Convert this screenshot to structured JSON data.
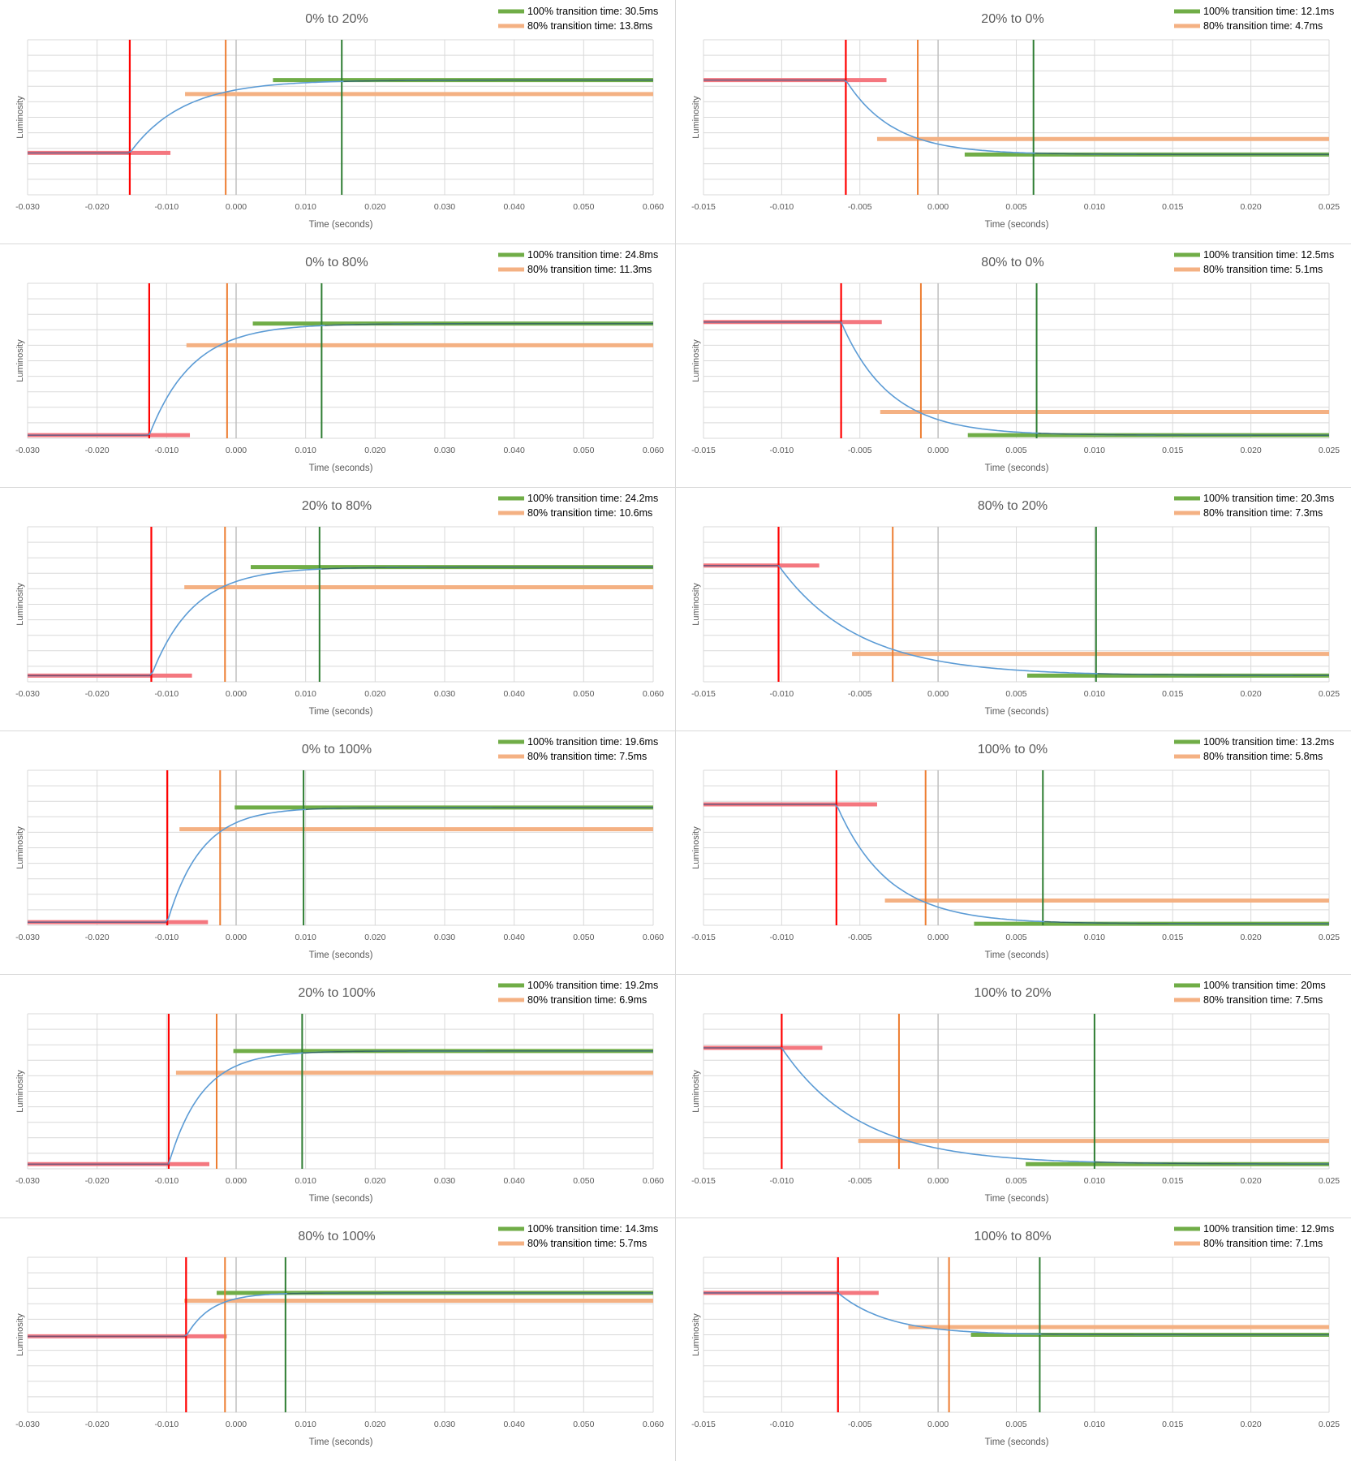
{
  "chart_data": [
    {
      "type": "line",
      "title": "0% to 20%",
      "xlabel": "Time (seconds)",
      "ylabel": "Luminosity",
      "xlim": [
        -0.03,
        0.06
      ],
      "xticks": [
        "-0.030",
        "-0.020",
        "-0.010",
        "0.000",
        "0.010",
        "0.020",
        "0.030",
        "0.040",
        "0.050",
        "0.060"
      ],
      "direction": "rise",
      "levels": {
        "start": 0.27,
        "end": 0.74,
        "threshold80": 0.65
      },
      "markers": {
        "start_time": -0.0153,
        "t80": -0.0015,
        "t100": 0.0152
      },
      "legend": [
        {
          "label": "100% transition time: 30.5ms",
          "color": "#70ad47"
        },
        {
          "label": "80% transition time: 13.8ms",
          "color": "#f4b183"
        }
      ]
    },
    {
      "type": "line",
      "title": "20% to 0%",
      "xlabel": "Time (seconds)",
      "ylabel": "Luminosity",
      "xlim": [
        -0.015,
        0.025
      ],
      "xticks": [
        "-0.015",
        "-0.010",
        "-0.005",
        "0.000",
        "0.005",
        "0.010",
        "0.015",
        "0.020",
        "0.025"
      ],
      "direction": "fall",
      "levels": {
        "start": 0.74,
        "end": 0.26,
        "threshold80": 0.36
      },
      "markers": {
        "start_time": -0.0059,
        "t80": -0.0013,
        "t100": 0.0061
      },
      "legend": [
        {
          "label": "100% transition time: 12.1ms",
          "color": "#70ad47"
        },
        {
          "label": "80% transition time: 4.7ms",
          "color": "#f4b183"
        }
      ]
    },
    {
      "type": "line",
      "title": "0% to 80%",
      "xlabel": "Time (seconds)",
      "ylabel": "Luminosity",
      "xlim": [
        -0.03,
        0.06
      ],
      "xticks": [
        "-0.030",
        "-0.020",
        "-0.010",
        "0.000",
        "0.010",
        "0.020",
        "0.030",
        "0.040",
        "0.050",
        "0.060"
      ],
      "direction": "rise",
      "levels": {
        "start": 0.02,
        "end": 0.74,
        "threshold80": 0.6
      },
      "markers": {
        "start_time": -0.0125,
        "t80": -0.0013,
        "t100": 0.0123
      },
      "legend": [
        {
          "label": "100% transition time: 24.8ms",
          "color": "#70ad47"
        },
        {
          "label": "80% transition time: 11.3ms",
          "color": "#f4b183"
        }
      ]
    },
    {
      "type": "line",
      "title": "80% to 0%",
      "xlabel": "Time (seconds)",
      "ylabel": "Luminosity",
      "xlim": [
        -0.015,
        0.025
      ],
      "xticks": [
        "-0.015",
        "-0.010",
        "-0.005",
        "0.000",
        "0.005",
        "0.010",
        "0.015",
        "0.020",
        "0.025"
      ],
      "direction": "fall",
      "levels": {
        "start": 0.75,
        "end": 0.02,
        "threshold80": 0.17
      },
      "markers": {
        "start_time": -0.0062,
        "t80": -0.0011,
        "t100": 0.0063
      },
      "legend": [
        {
          "label": "100% transition time: 12.5ms",
          "color": "#70ad47"
        },
        {
          "label": "80% transition time: 5.1ms",
          "color": "#f4b183"
        }
      ]
    },
    {
      "type": "line",
      "title": "20% to 80%",
      "xlabel": "Time (seconds)",
      "ylabel": "Luminosity",
      "xlim": [
        -0.03,
        0.06
      ],
      "xticks": [
        "-0.030",
        "-0.020",
        "-0.010",
        "0.000",
        "0.010",
        "0.020",
        "0.030",
        "0.040",
        "0.050",
        "0.060"
      ],
      "direction": "rise",
      "levels": {
        "start": 0.04,
        "end": 0.74,
        "threshold80": 0.61
      },
      "markers": {
        "start_time": -0.0122,
        "t80": -0.0016,
        "t100": 0.012
      },
      "legend": [
        {
          "label": "100% transition time: 24.2ms",
          "color": "#70ad47"
        },
        {
          "label": "80% transition time: 10.6ms",
          "color": "#f4b183"
        }
      ]
    },
    {
      "type": "line",
      "title": "80% to 20%",
      "xlabel": "Time (seconds)",
      "ylabel": "Luminosity",
      "xlim": [
        -0.015,
        0.025
      ],
      "xticks": [
        "-0.015",
        "-0.010",
        "-0.005",
        "0.000",
        "0.005",
        "0.010",
        "0.015",
        "0.020",
        "0.025"
      ],
      "direction": "fall",
      "levels": {
        "start": 0.75,
        "end": 0.04,
        "threshold80": 0.18
      },
      "markers": {
        "start_time": -0.0102,
        "t80": -0.0029,
        "t100": 0.0101
      },
      "legend": [
        {
          "label": "100% transition time: 20.3ms",
          "color": "#70ad47"
        },
        {
          "label": "80% transition time: 7.3ms",
          "color": "#f4b183"
        }
      ]
    },
    {
      "type": "line",
      "title": "0% to 100%",
      "xlabel": "Time (seconds)",
      "ylabel": "Luminosity",
      "xlim": [
        -0.03,
        0.06
      ],
      "xticks": [
        "-0.030",
        "-0.020",
        "-0.010",
        "0.000",
        "0.010",
        "0.020",
        "0.030",
        "0.040",
        "0.050",
        "0.060"
      ],
      "direction": "rise",
      "levels": {
        "start": 0.02,
        "end": 0.76,
        "threshold80": 0.62
      },
      "markers": {
        "start_time": -0.0099,
        "t80": -0.0023,
        "t100": 0.0097
      },
      "legend": [
        {
          "label": "100% transition time: 19.6ms",
          "color": "#70ad47"
        },
        {
          "label": "80% transition time: 7.5ms",
          "color": "#f4b183"
        }
      ]
    },
    {
      "type": "line",
      "title": "100% to 0%",
      "xlabel": "Time (seconds)",
      "ylabel": "Luminosity",
      "xlim": [
        -0.015,
        0.025
      ],
      "xticks": [
        "-0.015",
        "-0.010",
        "-0.005",
        "0.000",
        "0.005",
        "0.010",
        "0.015",
        "0.020",
        "0.025"
      ],
      "direction": "fall",
      "levels": {
        "start": 0.78,
        "end": 0.01,
        "threshold80": 0.16
      },
      "markers": {
        "start_time": -0.0065,
        "t80": -0.0008,
        "t100": 0.0067
      },
      "legend": [
        {
          "label": "100% transition time: 13.2ms",
          "color": "#70ad47"
        },
        {
          "label": "80% transition time: 5.8ms",
          "color": "#f4b183"
        }
      ]
    },
    {
      "type": "line",
      "title": "20% to 100%",
      "xlabel": "Time (seconds)",
      "ylabel": "Luminosity",
      "xlim": [
        -0.03,
        0.06
      ],
      "xticks": [
        "-0.030",
        "-0.020",
        "-0.010",
        "0.000",
        "0.010",
        "0.020",
        "0.030",
        "0.040",
        "0.050",
        "0.060"
      ],
      "direction": "rise",
      "levels": {
        "start": 0.03,
        "end": 0.76,
        "threshold80": 0.62
      },
      "markers": {
        "start_time": -0.0097,
        "t80": -0.0028,
        "t100": 0.0095
      },
      "legend": [
        {
          "label": "100% transition time: 19.2ms",
          "color": "#70ad47"
        },
        {
          "label": "80% transition time: 6.9ms",
          "color": "#f4b183"
        }
      ]
    },
    {
      "type": "line",
      "title": "100% to 20%",
      "xlabel": "Time (seconds)",
      "ylabel": "Luminosity",
      "xlim": [
        -0.015,
        0.025
      ],
      "xticks": [
        "-0.015",
        "-0.010",
        "-0.005",
        "0.000",
        "0.005",
        "0.010",
        "0.015",
        "0.020",
        "0.025"
      ],
      "direction": "fall",
      "levels": {
        "start": 0.78,
        "end": 0.03,
        "threshold80": 0.18
      },
      "markers": {
        "start_time": -0.01,
        "t80": -0.0025,
        "t100": 0.01
      },
      "legend": [
        {
          "label": "100% transition time: 20ms",
          "color": "#70ad47"
        },
        {
          "label": "80% transition time: 7.5ms",
          "color": "#f4b183"
        }
      ]
    },
    {
      "type": "line",
      "title": "80% to 100%",
      "xlabel": "Time (seconds)",
      "ylabel": "Luminosity",
      "xlim": [
        -0.03,
        0.06
      ],
      "xticks": [
        "-0.030",
        "-0.020",
        "-0.010",
        "0.000",
        "0.010",
        "0.020",
        "0.030",
        "0.040",
        "0.050",
        "0.060"
      ],
      "direction": "rise",
      "levels": {
        "start": 0.49,
        "end": 0.77,
        "threshold80": 0.72
      },
      "markers": {
        "start_time": -0.0072,
        "t80": -0.0016,
        "t100": 0.0071
      },
      "legend": [
        {
          "label": "100% transition time: 14.3ms",
          "color": "#70ad47"
        },
        {
          "label": "80% transition time: 5.7ms",
          "color": "#f4b183"
        }
      ]
    },
    {
      "type": "line",
      "title": "100% to 80%",
      "xlabel": "Time (seconds)",
      "ylabel": "Luminosity",
      "xlim": [
        -0.015,
        0.025
      ],
      "xticks": [
        "-0.015",
        "-0.010",
        "-0.005",
        "0.000",
        "0.005",
        "0.010",
        "0.015",
        "0.020",
        "0.025"
      ],
      "direction": "fall",
      "levels": {
        "start": 0.77,
        "end": 0.5,
        "threshold80": 0.55
      },
      "markers": {
        "start_time": -0.0064,
        "t80": 0.0007,
        "t100": 0.0065
      },
      "legend": [
        {
          "label": "100% transition time: 12.9ms",
          "color": "#70ad47"
        },
        {
          "label": "80% transition time: 7.1ms",
          "color": "#f4b183"
        }
      ]
    }
  ],
  "colors": {
    "curve": "#5b9bd5",
    "start_marker": "#ff0000",
    "start_band": "#f4777f",
    "t80_marker": "#ed7d31",
    "t80_band": "#f4b183",
    "t100_marker": "#2e7d32",
    "t100_band": "#70ad47",
    "grid": "#d9d9d9",
    "zero_line": "#bfbfbf"
  }
}
